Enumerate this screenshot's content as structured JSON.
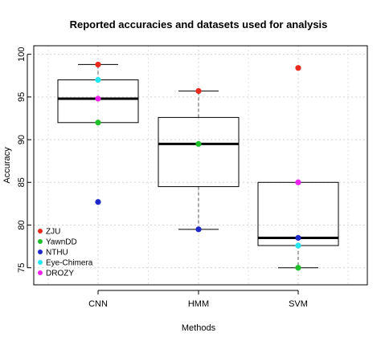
{
  "chart_data": {
    "type": "boxplot",
    "title": "Reported accuracies and datasets used for analysis",
    "xlabel": "Methods",
    "ylabel": "Accuracy",
    "categories": [
      "CNN",
      "HMM",
      "SVM"
    ],
    "ylim": [
      73,
      101
    ],
    "yticks": [
      75,
      80,
      85,
      90,
      95,
      100
    ],
    "grid": true,
    "legend_position": "bottom-left",
    "boxes": [
      {
        "category": "CNN",
        "whisker_low": 92.0,
        "q1": 92.0,
        "median": 94.8,
        "q3": 97.0,
        "whisker_high": 98.8
      },
      {
        "category": "HMM",
        "whisker_low": 79.5,
        "q1": 84.5,
        "median": 89.5,
        "q3": 92.6,
        "whisker_high": 95.7
      },
      {
        "category": "SVM",
        "whisker_low": 75.0,
        "q1": 77.6,
        "median": 78.5,
        "q3": 85.0,
        "whisker_high": 85.0
      }
    ],
    "series": [
      {
        "name": "ZJU",
        "color": "#e8291c",
        "values": [
          98.8,
          95.7,
          98.4
        ]
      },
      {
        "name": "YawnDD",
        "color": "#1fbf2a",
        "values": [
          92.0,
          89.5,
          75.0
        ]
      },
      {
        "name": "NTHU",
        "color": "#1f28c8",
        "values": [
          82.7,
          79.5,
          78.5
        ]
      },
      {
        "name": "Eye-Chimera",
        "color": "#22e6f0",
        "values": [
          97.0,
          null,
          77.6
        ]
      },
      {
        "name": "DROZY",
        "color": "#ee22ee",
        "values": [
          94.8,
          null,
          85.0
        ]
      }
    ]
  }
}
